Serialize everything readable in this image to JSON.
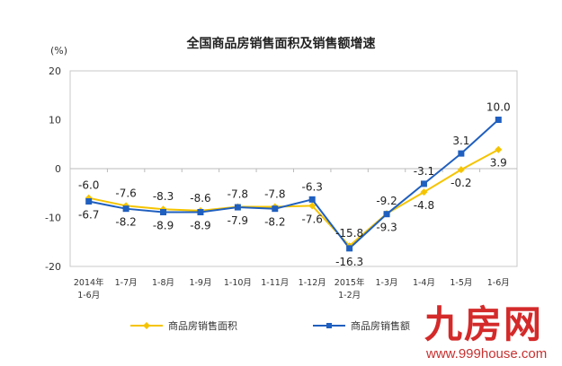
{
  "chart_data": {
    "type": "line",
    "title": "全国商品房销售面积及销售额增速",
    "ylabel": "(%)",
    "ylim": [
      -20,
      20
    ],
    "yticks": [
      20,
      10,
      0,
      -10,
      -20
    ],
    "categories": [
      "2014年\n1-6月",
      "1-7月",
      "1-8月",
      "1-9月",
      "1-10月",
      "1-11月",
      "1-12月",
      "2015年\n1-2月",
      "1-3月",
      "1-4月",
      "1-5月",
      "1-6月"
    ],
    "series": [
      {
        "name": "商品房销售面积",
        "color": "#f5c400",
        "marker": "diamond",
        "values": [
          -6.0,
          -7.6,
          -8.3,
          -8.6,
          -7.8,
          -7.8,
          -7.6,
          -15.8,
          -9.2,
          -4.8,
          -0.2,
          3.9
        ]
      },
      {
        "name": "商品房销售额",
        "color": "#1f5fbf",
        "marker": "square",
        "values": [
          -6.7,
          -8.2,
          -8.9,
          -8.9,
          -7.9,
          -8.2,
          -6.3,
          -16.3,
          -9.3,
          -3.1,
          3.1,
          10.0
        ]
      }
    ],
    "grid": false,
    "legend": "bottom"
  },
  "watermark": {
    "logo": "九房网",
    "url": "www.999house.com"
  }
}
